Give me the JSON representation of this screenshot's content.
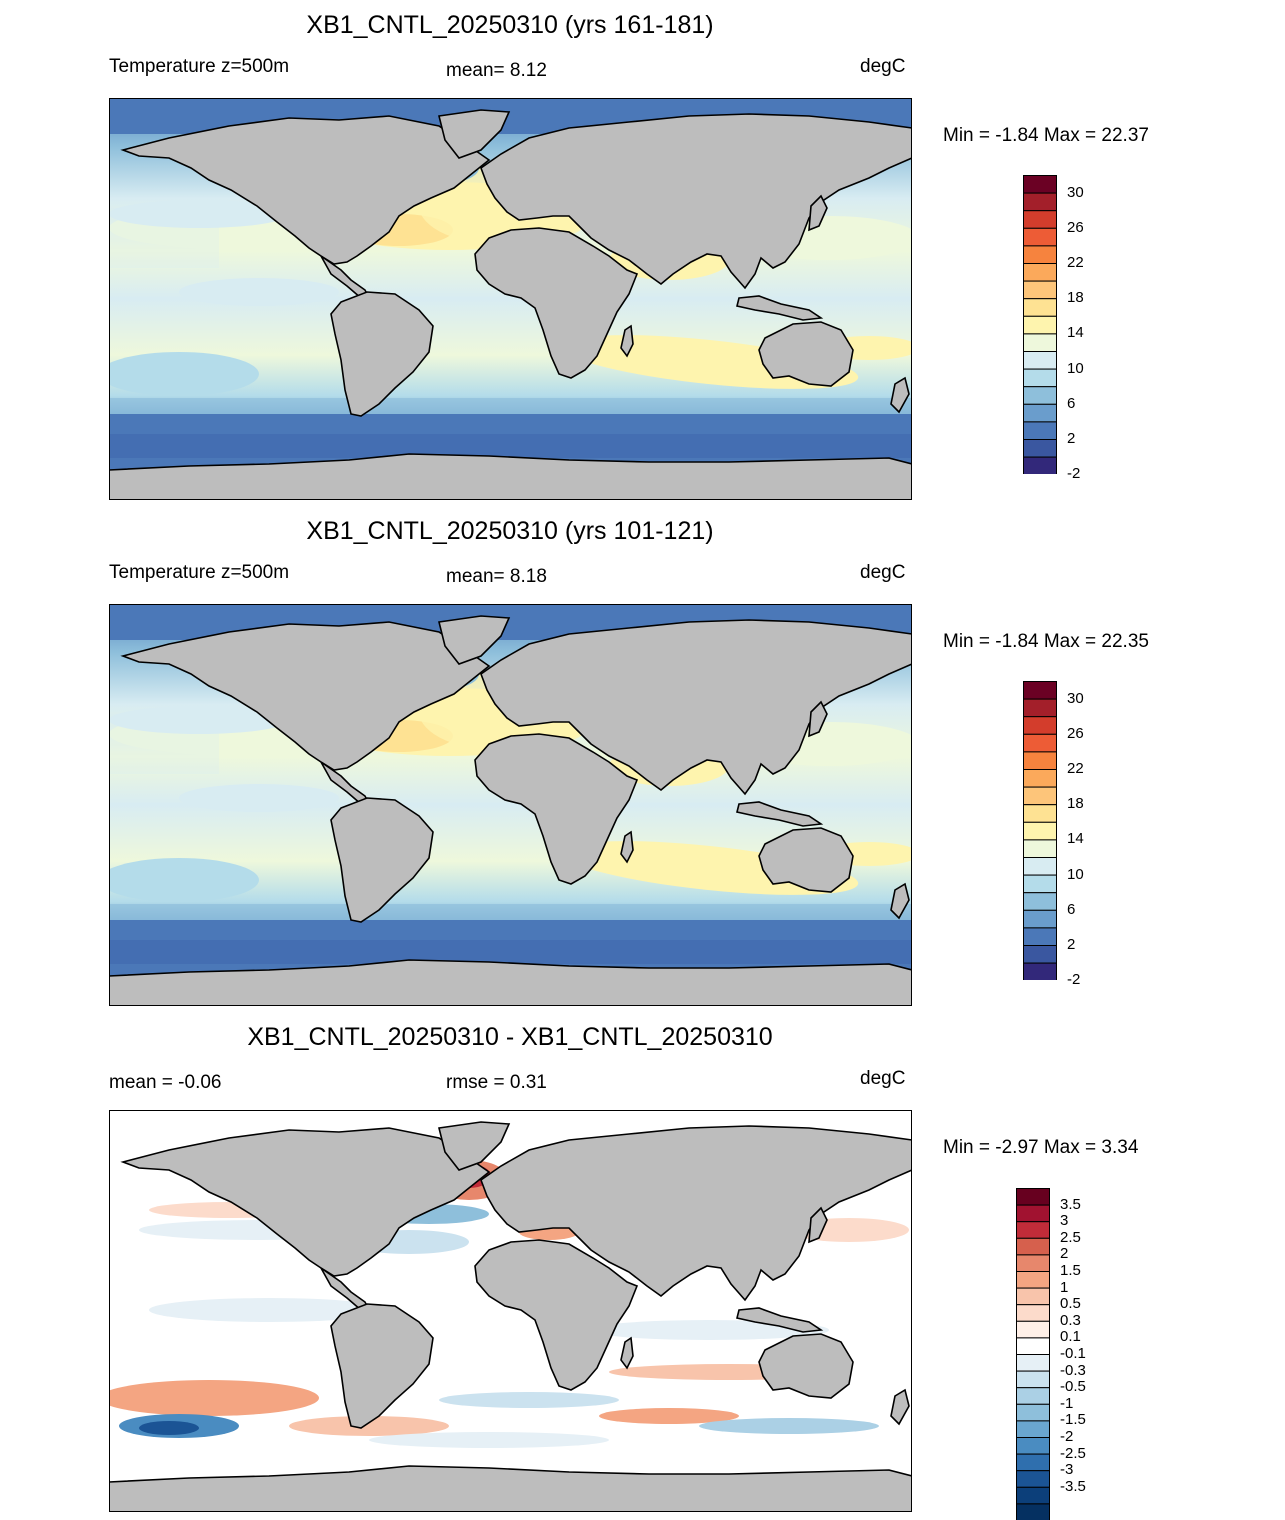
{
  "colors": {
    "land": "#bdbdbd",
    "ocean_cold": "#4f7fbd",
    "ocean_mid": "#9dcbe0",
    "ocean_warm": "#fdf5b8",
    "ocean_hot": "#fde08a"
  },
  "panels": [
    {
      "title": "XB1_CNTL_20250310 (yrs 161-181)",
      "left_label": "Temperature z=500m",
      "center_label": "mean=   8.12",
      "right_label": "degC",
      "minmax": "Min =  -1.84 Max =  22.37",
      "type": "abs"
    },
    {
      "title": "XB1_CNTL_20250310 (yrs 101-121)",
      "left_label": "Temperature z=500m",
      "center_label": "mean=   8.18",
      "right_label": "degC",
      "minmax": "Min =  -1.84 Max =  22.35",
      "type": "abs"
    },
    {
      "title": "XB1_CNTL_20250310 - XB1_CNTL_20250310",
      "left_label": "mean =  -0.06",
      "center_label": "rmse =   0.31",
      "right_label": "degC",
      "minmax": "Min =  -2.97 Max =   3.34",
      "type": "diff"
    }
  ],
  "colorbars": {
    "abs": {
      "colors": [
        "#6b0124",
        "#a31f2a",
        "#d33d2c",
        "#ed5c36",
        "#f6833e",
        "#fba95b",
        "#fdc57a",
        "#fee293",
        "#fef4ae",
        "#eef8dc",
        "#d8ecf2",
        "#b4dcea",
        "#8ebfdb",
        "#6a9dcc",
        "#4b78b8",
        "#3a57a0",
        "#32287a"
      ],
      "labels": [
        "30",
        "26",
        "22",
        "18",
        "14",
        "10",
        "6",
        "2",
        "-2"
      ]
    },
    "diff": {
      "colors": [
        "#67001f",
        "#a11230",
        "#c12c39",
        "#d6604d",
        "#e7876c",
        "#f4a582",
        "#f8c4ab",
        "#fcdbcb",
        "#fff0e8",
        "#ffffff",
        "#e6f0f6",
        "#cbe2ef",
        "#abd0e5",
        "#8ebfdb",
        "#6aa6cf",
        "#4a8cc1",
        "#2f6fae",
        "#1b5495",
        "#0c3f7a",
        "#053061"
      ],
      "labels": [
        "3.5",
        "3",
        "2.5",
        "2",
        "1.5",
        "1",
        "0.5",
        "0.3",
        "0.1",
        "-0.1",
        "-0.3",
        "-0.5",
        "-1",
        "-1.5",
        "-2",
        "-2.5",
        "-3",
        "-3.5"
      ]
    }
  }
}
